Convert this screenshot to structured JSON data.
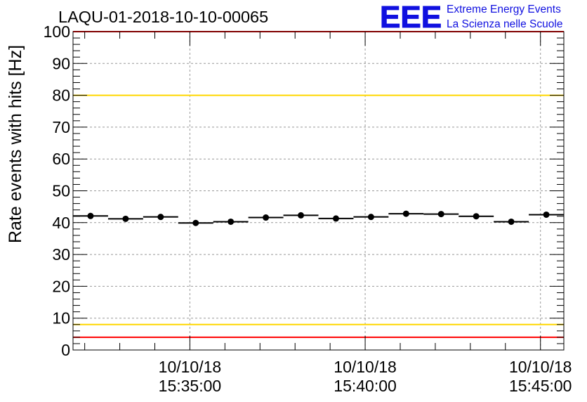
{
  "chart_title": "LAQU-01-2018-10-10-00065",
  "logo": {
    "mark": "EEE",
    "line1": "Extreme Energy Events",
    "line2": "La Scienza nelle Scuole",
    "color": "#1010e0"
  },
  "chart_data": {
    "type": "scatter",
    "title": "LAQU-01-2018-10-10-00065",
    "xlabel": "",
    "ylabel": "Rate events with hits [Hz]",
    "ylim": [
      0,
      100
    ],
    "xlim": [
      "15:31:40",
      "15:45:40"
    ],
    "yticks": [
      "0",
      "10",
      "20",
      "30",
      "40",
      "50",
      "60",
      "70",
      "80",
      "90",
      "100"
    ],
    "xticks": [
      {
        "date": "10/10/18",
        "time": "15:35:00"
      },
      {
        "date": "10/10/18",
        "time": "15:40:00"
      },
      {
        "date": "10/10/18",
        "time": "15:45:00"
      }
    ],
    "grid": true,
    "bin_width_seconds": 60,
    "series": [
      {
        "x": [
          "15:32:10",
          "15:33:10",
          "15:34:10",
          "15:35:10",
          "15:36:10",
          "15:37:10",
          "15:38:10",
          "15:39:10",
          "15:40:10",
          "15:41:10",
          "15:42:10",
          "15:43:10",
          "15:44:10",
          "15:45:10"
        ],
        "values": [
          42.1,
          41.2,
          41.8,
          39.9,
          40.3,
          41.6,
          42.3,
          41.3,
          41.8,
          42.8,
          42.7,
          42.0,
          40.3,
          42.5
        ],
        "color": "#000000"
      }
    ],
    "reference_lines": [
      {
        "y": 100,
        "color": "#ff0000"
      },
      {
        "y": 80,
        "color": "#ffd700"
      },
      {
        "y": 8,
        "color": "#ffd700"
      },
      {
        "y": 4,
        "color": "#ff0000"
      }
    ]
  }
}
